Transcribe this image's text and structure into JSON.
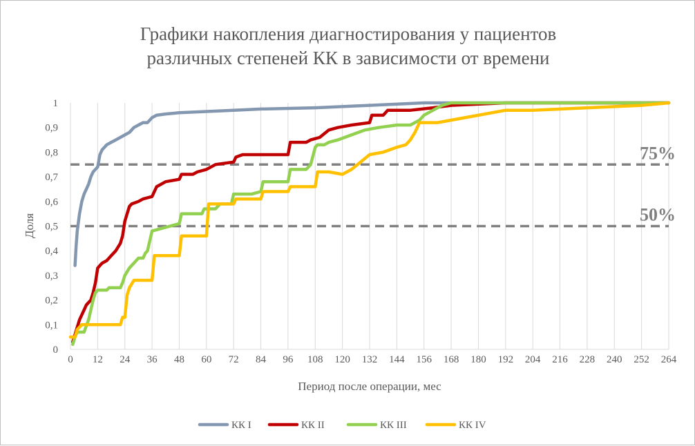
{
  "chart_data": {
    "type": "line",
    "title_lines": [
      "Графики накопления диагностирования у пациентов",
      "различных степеней КК в зависимости от времени"
    ],
    "xlabel": "Период после операции, мес",
    "ylabel": "Доля",
    "xlim": [
      0,
      264
    ],
    "ylim": [
      0,
      1
    ],
    "x_ticks": [
      "0",
      "12",
      "24",
      "36",
      "48",
      "60",
      "72",
      "84",
      "96",
      "108",
      "120",
      "132",
      "144",
      "156",
      "168",
      "180",
      "192",
      "204",
      "216",
      "228",
      "240",
      "252",
      "264"
    ],
    "x_tick_values": [
      0,
      12,
      24,
      36,
      48,
      60,
      72,
      84,
      96,
      108,
      120,
      132,
      144,
      156,
      168,
      180,
      192,
      204,
      216,
      228,
      240,
      252,
      264
    ],
    "y_ticks": [
      "0",
      "0,1",
      "0,2",
      "0,3",
      "0,4",
      "0,5",
      "0,6",
      "0,7",
      "0,8",
      "0,9",
      "1"
    ],
    "y_tick_values": [
      0,
      0.1,
      0.2,
      0.3,
      0.4,
      0.5,
      0.6,
      0.7,
      0.8,
      0.9,
      1
    ],
    "grid": "vertical",
    "legend_position": "bottom",
    "reference_lines": [
      {
        "y": 0.75,
        "label": "75%",
        "color": "#808080"
      },
      {
        "y": 0.5,
        "label": "50%",
        "color": "#808080"
      }
    ],
    "series": [
      {
        "name": "КК I",
        "color": "#8497b0",
        "points": [
          [
            2,
            0.34
          ],
          [
            2.5,
            0.42
          ],
          [
            3,
            0.48
          ],
          [
            4,
            0.55
          ],
          [
            5,
            0.6
          ],
          [
            6,
            0.63
          ],
          [
            7,
            0.65
          ],
          [
            8,
            0.67
          ],
          [
            9,
            0.7
          ],
          [
            10,
            0.72
          ],
          [
            11,
            0.73
          ],
          [
            12,
            0.74
          ],
          [
            13,
            0.79
          ],
          [
            14,
            0.81
          ],
          [
            15,
            0.82
          ],
          [
            16,
            0.83
          ],
          [
            18,
            0.84
          ],
          [
            20,
            0.85
          ],
          [
            22,
            0.86
          ],
          [
            24,
            0.87
          ],
          [
            26,
            0.88
          ],
          [
            28,
            0.9
          ],
          [
            30,
            0.91
          ],
          [
            32,
            0.92
          ],
          [
            34,
            0.92
          ],
          [
            36,
            0.94
          ],
          [
            38,
            0.95
          ],
          [
            42,
            0.955
          ],
          [
            48,
            0.96
          ],
          [
            60,
            0.965
          ],
          [
            72,
            0.97
          ],
          [
            84,
            0.975
          ],
          [
            108,
            0.98
          ],
          [
            132,
            0.99
          ],
          [
            156,
            1.0
          ],
          [
            264,
            1.0
          ]
        ]
      },
      {
        "name": "КК II",
        "color": "#c00000",
        "points": [
          [
            1,
            0.03
          ],
          [
            2,
            0.06
          ],
          [
            3,
            0.09
          ],
          [
            4,
            0.12
          ],
          [
            5,
            0.14
          ],
          [
            6,
            0.16
          ],
          [
            7,
            0.18
          ],
          [
            8,
            0.19
          ],
          [
            9,
            0.2
          ],
          [
            10,
            0.23
          ],
          [
            11,
            0.27
          ],
          [
            12,
            0.33
          ],
          [
            13,
            0.34
          ],
          [
            14,
            0.35
          ],
          [
            16,
            0.36
          ],
          [
            18,
            0.38
          ],
          [
            20,
            0.4
          ],
          [
            22,
            0.43
          ],
          [
            23,
            0.46
          ],
          [
            24,
            0.52
          ],
          [
            25,
            0.55
          ],
          [
            26,
            0.58
          ],
          [
            27,
            0.59
          ],
          [
            30,
            0.6
          ],
          [
            32,
            0.61
          ],
          [
            36,
            0.62
          ],
          [
            37,
            0.64
          ],
          [
            38,
            0.66
          ],
          [
            40,
            0.67
          ],
          [
            42,
            0.68
          ],
          [
            48,
            0.69
          ],
          [
            49,
            0.71
          ],
          [
            54,
            0.71
          ],
          [
            56,
            0.72
          ],
          [
            60,
            0.73
          ],
          [
            62,
            0.74
          ],
          [
            64,
            0.75
          ],
          [
            72,
            0.76
          ],
          [
            73,
            0.78
          ],
          [
            76,
            0.79
          ],
          [
            96,
            0.79
          ],
          [
            97,
            0.84
          ],
          [
            104,
            0.84
          ],
          [
            106,
            0.85
          ],
          [
            110,
            0.86
          ],
          [
            114,
            0.89
          ],
          [
            118,
            0.9
          ],
          [
            124,
            0.91
          ],
          [
            132,
            0.92
          ],
          [
            133,
            0.95
          ],
          [
            138,
            0.95
          ],
          [
            140,
            0.97
          ],
          [
            150,
            0.97
          ],
          [
            160,
            0.98
          ],
          [
            168,
            0.99
          ],
          [
            192,
            1.0
          ],
          [
            264,
            1.0
          ]
        ]
      },
      {
        "name": "КК III",
        "color": "#92d050",
        "points": [
          [
            1,
            0.02
          ],
          [
            2,
            0.05
          ],
          [
            3,
            0.07
          ],
          [
            6,
            0.07
          ],
          [
            8,
            0.12
          ],
          [
            9,
            0.16
          ],
          [
            10,
            0.2
          ],
          [
            11,
            0.23
          ],
          [
            12,
            0.24
          ],
          [
            16,
            0.24
          ],
          [
            17,
            0.25
          ],
          [
            22,
            0.25
          ],
          [
            23,
            0.27
          ],
          [
            24,
            0.3
          ],
          [
            26,
            0.33
          ],
          [
            28,
            0.35
          ],
          [
            30,
            0.37
          ],
          [
            32,
            0.37
          ],
          [
            33,
            0.39
          ],
          [
            34,
            0.4
          ],
          [
            35,
            0.44
          ],
          [
            36,
            0.48
          ],
          [
            40,
            0.49
          ],
          [
            44,
            0.5
          ],
          [
            48,
            0.51
          ],
          [
            49,
            0.55
          ],
          [
            58,
            0.55
          ],
          [
            59,
            0.57
          ],
          [
            64,
            0.57
          ],
          [
            66,
            0.59
          ],
          [
            71,
            0.59
          ],
          [
            72,
            0.63
          ],
          [
            80,
            0.63
          ],
          [
            84,
            0.64
          ],
          [
            85,
            0.68
          ],
          [
            96,
            0.68
          ],
          [
            97,
            0.73
          ],
          [
            104,
            0.73
          ],
          [
            106,
            0.75
          ],
          [
            108,
            0.82
          ],
          [
            109,
            0.83
          ],
          [
            112,
            0.83
          ],
          [
            114,
            0.84
          ],
          [
            118,
            0.85
          ],
          [
            124,
            0.87
          ],
          [
            130,
            0.89
          ],
          [
            136,
            0.9
          ],
          [
            144,
            0.91
          ],
          [
            150,
            0.91
          ],
          [
            154,
            0.93
          ],
          [
            156,
            0.95
          ],
          [
            160,
            0.97
          ],
          [
            164,
            0.99
          ],
          [
            168,
            1.0
          ],
          [
            264,
            1.0
          ]
        ]
      },
      {
        "name": "КК IV",
        "color": "#ffc000",
        "points": [
          [
            0,
            0.05
          ],
          [
            2,
            0.05
          ],
          [
            3,
            0.08
          ],
          [
            5,
            0.1
          ],
          [
            22,
            0.1
          ],
          [
            23,
            0.13
          ],
          [
            24,
            0.13
          ],
          [
            25,
            0.22
          ],
          [
            26,
            0.25
          ],
          [
            28,
            0.28
          ],
          [
            36,
            0.28
          ],
          [
            37,
            0.38
          ],
          [
            48,
            0.38
          ],
          [
            49,
            0.46
          ],
          [
            60,
            0.46
          ],
          [
            61,
            0.59
          ],
          [
            72,
            0.59
          ],
          [
            73,
            0.61
          ],
          [
            84,
            0.61
          ],
          [
            85,
            0.64
          ],
          [
            96,
            0.64
          ],
          [
            97,
            0.66
          ],
          [
            108,
            0.66
          ],
          [
            109,
            0.72
          ],
          [
            114,
            0.72
          ],
          [
            120,
            0.71
          ],
          [
            124,
            0.73
          ],
          [
            128,
            0.76
          ],
          [
            132,
            0.79
          ],
          [
            138,
            0.8
          ],
          [
            144,
            0.82
          ],
          [
            148,
            0.83
          ],
          [
            150,
            0.85
          ],
          [
            152,
            0.88
          ],
          [
            154,
            0.92
          ],
          [
            162,
            0.92
          ],
          [
            168,
            0.93
          ],
          [
            180,
            0.95
          ],
          [
            192,
            0.97
          ],
          [
            204,
            0.97
          ],
          [
            228,
            0.98
          ],
          [
            252,
            0.99
          ],
          [
            264,
            1.0
          ]
        ]
      }
    ]
  }
}
